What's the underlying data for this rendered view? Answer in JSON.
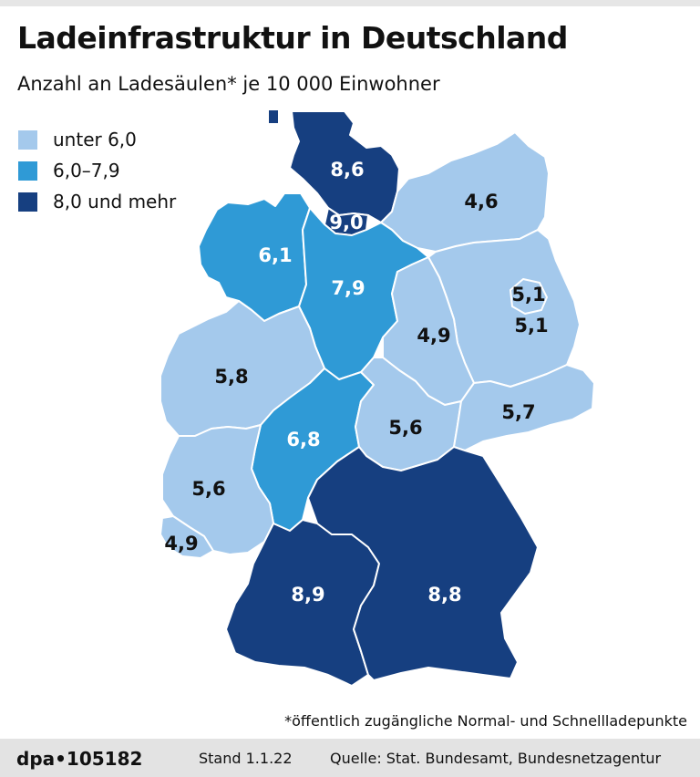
{
  "header": {
    "title": "Ladeinfrastruktur in Deutschland",
    "subtitle": "Anzahl an Ladesäulen* je 10 000 Einwohner"
  },
  "legend": [
    {
      "label": "unter 6,0",
      "color": "#a4c9ec"
    },
    {
      "label": "6,0–7,9",
      "color": "#2f9ad6"
    },
    {
      "label": "8,0 und mehr",
      "color": "#163f80"
    }
  ],
  "map": {
    "regions": [
      {
        "id": "schleswig-holstein",
        "value": "8,6",
        "category": "high"
      },
      {
        "id": "hamburg",
        "value": "9,0",
        "category": "high"
      },
      {
        "id": "mecklenburg-vorpommern",
        "value": "4,6",
        "category": "low"
      },
      {
        "id": "bremen",
        "value": "6,1",
        "category": "mid"
      },
      {
        "id": "niedersachsen",
        "value": "7,9",
        "category": "mid"
      },
      {
        "id": "berlin",
        "value": "5,1",
        "category": "low"
      },
      {
        "id": "brandenburg",
        "value": "5,1",
        "category": "low"
      },
      {
        "id": "sachsen-anhalt",
        "value": "4,9",
        "category": "low"
      },
      {
        "id": "nordrhein-westfalen",
        "value": "5,8",
        "category": "low"
      },
      {
        "id": "hessen",
        "value": "6,8",
        "category": "mid"
      },
      {
        "id": "thueringen",
        "value": "5,6",
        "category": "low"
      },
      {
        "id": "sachsen",
        "value": "5,7",
        "category": "low"
      },
      {
        "id": "rheinland-pfalz",
        "value": "5,6",
        "category": "low"
      },
      {
        "id": "saarland",
        "value": "4,9",
        "category": "low"
      },
      {
        "id": "baden-wuerttemberg",
        "value": "8,9",
        "category": "high"
      },
      {
        "id": "bayern",
        "value": "8,8",
        "category": "high"
      }
    ]
  },
  "footnote": "*öffentlich zugängliche Normal- und Schnellladepunkte",
  "footer": {
    "brand": "dpa•105182",
    "stand": "Stand 1.1.22",
    "source": "Quelle: Stat. Bundesamt, Bundesnetzagentur"
  }
}
